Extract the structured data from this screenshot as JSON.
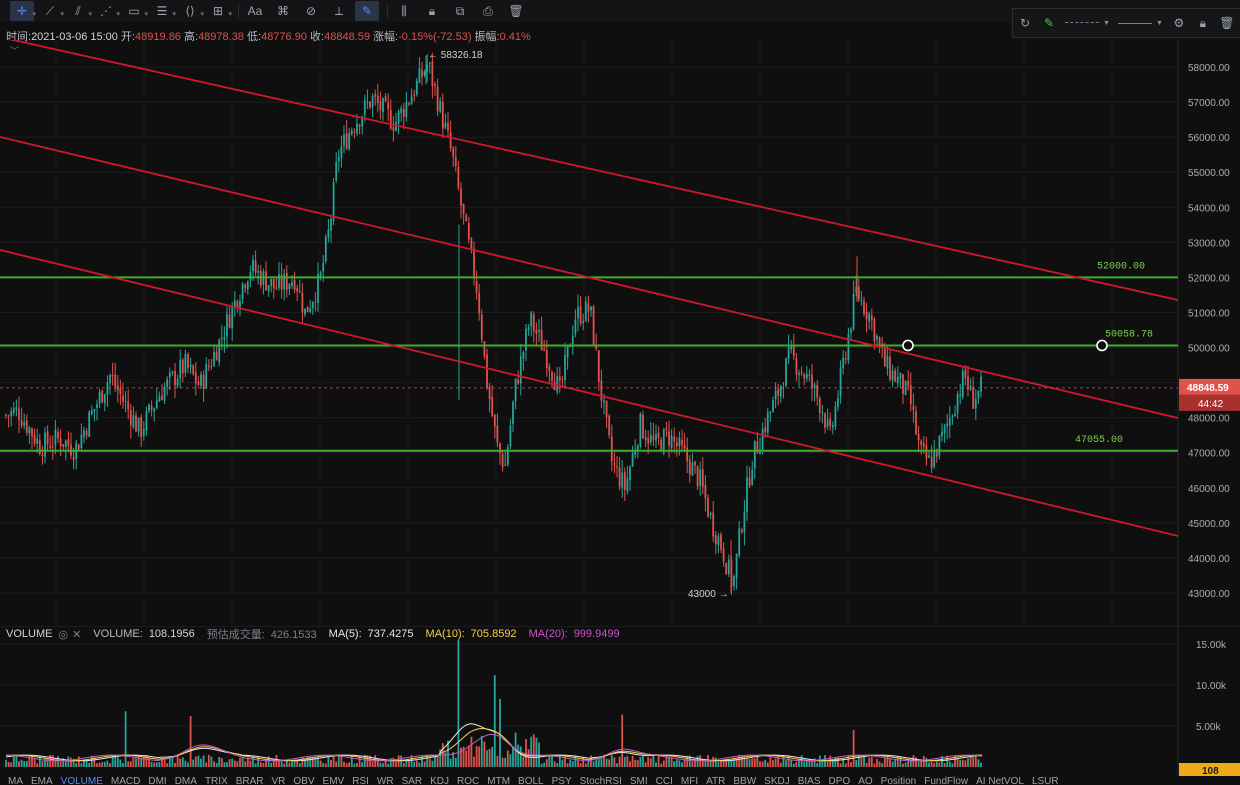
{
  "toolbar": {
    "buttons": [
      {
        "id": "crosshair",
        "glyph": "✛",
        "active": true,
        "caret": true
      },
      {
        "id": "trendline",
        "glyph": "⟋",
        "caret": true
      },
      {
        "id": "channel",
        "glyph": "⫽",
        "caret": true
      },
      {
        "id": "polyline",
        "glyph": "⋰",
        "caret": true
      },
      {
        "id": "rectangle",
        "glyph": "▭",
        "caret": true
      },
      {
        "id": "fib",
        "glyph": "☰",
        "caret": true
      },
      {
        "id": "pattern",
        "glyph": "⟨⟩",
        "caret": true
      },
      {
        "id": "measure",
        "glyph": "⊞",
        "caret": true
      },
      {
        "id": "text",
        "glyph": "Aa",
        "caret": false
      },
      {
        "id": "magnet",
        "glyph": "⌘",
        "caret": false
      },
      {
        "id": "eraser",
        "glyph": "⊘",
        "caret": false
      },
      {
        "id": "ruler",
        "glyph": "⟂",
        "caret": false
      },
      {
        "id": "draw-mode",
        "glyph": "✎",
        "active": true,
        "caret": false
      },
      {
        "id": "visibility",
        "glyph": "⫼",
        "caret": false
      },
      {
        "id": "lock",
        "glyph": "🔒︎",
        "caret": false
      },
      {
        "id": "copy",
        "glyph": "⧉",
        "caret": false
      },
      {
        "id": "screenshot",
        "glyph": "⎙",
        "caret": false
      },
      {
        "id": "delete",
        "glyph": "🗑︎",
        "caret": false
      }
    ]
  },
  "infobar": {
    "time_label": "时间:",
    "time": "2021-03-06 15:00",
    "open_label": "开:",
    "open": "48919.86",
    "high_label": "高:",
    "high": "48978.38",
    "low_label": "低:",
    "low": "48776.90",
    "close_label": "收:",
    "close": "48848.59",
    "change_label": "涨幅:",
    "change": "-0.15%(-72.53)",
    "amplitude_label": "振幅:",
    "amplitude": "0.41%"
  },
  "colors": {
    "up": "#26a69a",
    "down": "#e0524c",
    "trend": "#d0182c",
    "level": "#3fae2c",
    "level_text": "#7fd04a",
    "ma5": "#e8e8e8",
    "ma10": "#f2d24b",
    "ma20": "#c956c9"
  },
  "price_axis": {
    "ticks": [
      "58000.00",
      "57000.00",
      "56000.00",
      "55000.00",
      "54000.00",
      "53000.00",
      "52000.00",
      "51000.00",
      "50000.00",
      "49000.00",
      "48000.00",
      "47000.00",
      "46000.00",
      "45000.00",
      "44000.00",
      "43000.00"
    ],
    "current_price": "48848.59",
    "countdown": "44:42"
  },
  "annotations": {
    "high_marker": "← 58326.18",
    "low_marker": "43000 →",
    "level_52000": "52000.00",
    "level_50058": "50058.78",
    "level_47055": "47055.00"
  },
  "volume_panel": {
    "title": "VOLUME",
    "volume_label": "VOLUME:",
    "volume": "108.1956",
    "est_label": "预估成交量:",
    "est": "426.1533",
    "ma5_label": "MA(5):",
    "ma5": "737.4275",
    "ma10_label": "MA(10):",
    "ma10": "705.8592",
    "ma20_label": "MA(20):",
    "ma20": "999.9499",
    "axis_ticks": [
      "15.00k",
      "10.00k",
      "5.00k"
    ],
    "current_volume": "108"
  },
  "indicator_tabs": [
    "MA",
    "EMA",
    "VOLUME",
    "MACD",
    "DMI",
    "DMA",
    "TRIX",
    "BRAR",
    "VR",
    "OBV",
    "EMV",
    "RSI",
    "WR",
    "SAR",
    "KDJ",
    "ROC",
    "MTM",
    "BOLL",
    "PSY",
    "StochRSI",
    "SMI",
    "CCI",
    "MFI",
    "ATR",
    "BBW",
    "SKDJ",
    "BIAS",
    "DPO",
    "AO",
    "Position",
    "FundFlow",
    "AI NetVOL",
    "LSUR"
  ],
  "selected_indicator": "VOLUME",
  "chart_data": {
    "type": "candlestick",
    "ylim": [
      42700,
      58500
    ],
    "series_path": [
      [
        48000,
        0
      ],
      [
        48200,
        18
      ],
      [
        47200,
        40
      ],
      [
        47400,
        60
      ],
      [
        47100,
        75
      ],
      [
        48600,
        100
      ],
      [
        49200,
        110
      ],
      [
        48400,
        125
      ],
      [
        47600,
        140
      ],
      [
        48700,
        160
      ],
      [
        49500,
        185
      ],
      [
        48900,
        200
      ],
      [
        50200,
        220
      ],
      [
        51300,
        235
      ],
      [
        52300,
        250
      ],
      [
        51700,
        275
      ],
      [
        52000,
        295
      ],
      [
        51000,
        305
      ],
      [
        51900,
        320
      ],
      [
        53500,
        330
      ],
      [
        55500,
        338
      ],
      [
        56300,
        352
      ],
      [
        57100,
        372
      ],
      [
        56400,
        395
      ],
      [
        57400,
        415
      ],
      [
        58100,
        428
      ],
      [
        56800,
        440
      ],
      [
        55500,
        452
      ],
      [
        54200,
        460
      ],
      [
        53000,
        468
      ],
      [
        51500,
        478
      ],
      [
        49200,
        486
      ],
      [
        47200,
        497
      ],
      [
        46600,
        505
      ],
      [
        48800,
        515
      ],
      [
        50800,
        530
      ],
      [
        49900,
        545
      ],
      [
        48700,
        560
      ],
      [
        50900,
        575
      ],
      [
        51100,
        590
      ],
      [
        48900,
        600
      ],
      [
        46700,
        612
      ],
      [
        46000,
        625
      ],
      [
        47800,
        640
      ],
      [
        47200,
        655
      ],
      [
        47500,
        668
      ],
      [
        46900,
        685
      ],
      [
        46200,
        700
      ],
      [
        45000,
        712
      ],
      [
        44300,
        722
      ],
      [
        43200,
        733
      ],
      [
        45100,
        742
      ],
      [
        46800,
        752
      ],
      [
        47800,
        765
      ],
      [
        48700,
        778
      ],
      [
        49800,
        790
      ],
      [
        49000,
        810
      ],
      [
        48300,
        822
      ],
      [
        47400,
        830
      ],
      [
        49800,
        845
      ],
      [
        51600,
        856
      ],
      [
        50900,
        870
      ],
      [
        49500,
        885
      ],
      [
        49000,
        900
      ],
      [
        48500,
        910
      ],
      [
        47000,
        920
      ],
      [
        46700,
        930
      ],
      [
        47600,
        945
      ],
      [
        48700,
        958
      ],
      [
        49200,
        965
      ],
      [
        48500,
        972
      ],
      [
        48850,
        982
      ]
    ]
  }
}
